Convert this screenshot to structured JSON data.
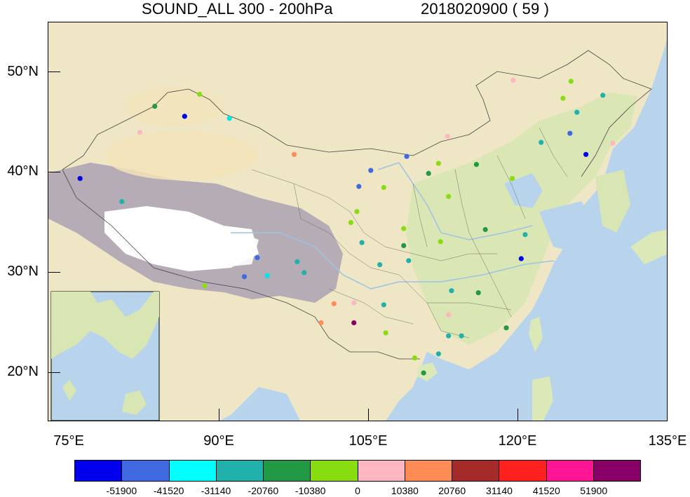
{
  "title": {
    "left": "SOUND_ALL 300 - 200hPa",
    "right": "2018020900  ( 59 )"
  },
  "map": {
    "lat_labels": [
      "50°N",
      "40°N",
      "30°N",
      "20°N"
    ],
    "lon_labels": [
      "75°E",
      "90°E",
      "105°E",
      "120°E",
      "135°E"
    ],
    "ocean_color": "#b8d4ec",
    "land_color": "#f0e6c8",
    "plateau_color": "#b4aab4",
    "snow_color": "#ffffff",
    "stations": [
      {
        "lon": 88,
        "lat": 47.8,
        "color": "#88dd11"
      },
      {
        "lon": 83.5,
        "lat": 46.6,
        "color": "#229944"
      },
      {
        "lon": 86.5,
        "lat": 45.6,
        "color": "#0000ee"
      },
      {
        "lon": 91,
        "lat": 45.4,
        "color": "#00e5e5"
      },
      {
        "lon": 82,
        "lat": 44,
        "color": "#ffb6c1"
      },
      {
        "lon": 76,
        "lat": 39.4,
        "color": "#0000ee"
      },
      {
        "lon": 80.2,
        "lat": 37.1,
        "color": "#20b2aa"
      },
      {
        "lon": 97.5,
        "lat": 41.8,
        "color": "#ff8c55"
      },
      {
        "lon": 104,
        "lat": 38.6,
        "color": "#4169e1"
      },
      {
        "lon": 105.2,
        "lat": 40.2,
        "color": "#4169e1"
      },
      {
        "lon": 106.5,
        "lat": 38.5,
        "color": "#88dd11"
      },
      {
        "lon": 108.8,
        "lat": 41.6,
        "color": "#4169e1"
      },
      {
        "lon": 111,
        "lat": 39.9,
        "color": "#229944"
      },
      {
        "lon": 112,
        "lat": 40.9,
        "color": "#88dd11"
      },
      {
        "lon": 113,
        "lat": 37.6,
        "color": "#88dd11"
      },
      {
        "lon": 115.8,
        "lat": 40.8,
        "color": "#229944"
      },
      {
        "lon": 119.4,
        "lat": 39.4,
        "color": "#88dd11"
      },
      {
        "lon": 112.9,
        "lat": 43.6,
        "color": "#ffb6c1"
      },
      {
        "lon": 119.5,
        "lat": 49.2,
        "color": "#ffb6c1"
      },
      {
        "lon": 125.3,
        "lat": 49.1,
        "color": "#88dd11"
      },
      {
        "lon": 124.5,
        "lat": 47.4,
        "color": "#88dd11"
      },
      {
        "lon": 128.5,
        "lat": 47.7,
        "color": "#20b2aa"
      },
      {
        "lon": 125.9,
        "lat": 46,
        "color": "#20b2aa"
      },
      {
        "lon": 125.2,
        "lat": 43.9,
        "color": "#4169e1"
      },
      {
        "lon": 122.3,
        "lat": 43,
        "color": "#20b2aa"
      },
      {
        "lon": 126.8,
        "lat": 41.8,
        "color": "#0000ee"
      },
      {
        "lon": 129.5,
        "lat": 42.9,
        "color": "#ffb6c1"
      },
      {
        "lon": 103.8,
        "lat": 36.1,
        "color": "#88dd11"
      },
      {
        "lon": 103.2,
        "lat": 35,
        "color": "#88dd11"
      },
      {
        "lon": 104.3,
        "lat": 33,
        "color": "#20b2aa"
      },
      {
        "lon": 108.5,
        "lat": 34.4,
        "color": "#88dd11"
      },
      {
        "lon": 108.5,
        "lat": 32.7,
        "color": "#229944"
      },
      {
        "lon": 112.2,
        "lat": 33.1,
        "color": "#88dd11"
      },
      {
        "lon": 116.7,
        "lat": 34.3,
        "color": "#229944"
      },
      {
        "lon": 120.7,
        "lat": 33.8,
        "color": "#20b2aa"
      },
      {
        "lon": 120.3,
        "lat": 31.4,
        "color": "#0000ee"
      },
      {
        "lon": 106.1,
        "lat": 30.8,
        "color": "#20b2aa"
      },
      {
        "lon": 109,
        "lat": 31.2,
        "color": "#20b2aa"
      },
      {
        "lon": 93.8,
        "lat": 31.5,
        "color": "#4169e1"
      },
      {
        "lon": 92.5,
        "lat": 29.6,
        "color": "#4169e1"
      },
      {
        "lon": 94.8,
        "lat": 29.7,
        "color": "#00e5e5"
      },
      {
        "lon": 97.8,
        "lat": 31.1,
        "color": "#20b2aa"
      },
      {
        "lon": 98.5,
        "lat": 30,
        "color": "#20b2aa"
      },
      {
        "lon": 88.5,
        "lat": 28.7,
        "color": "#88dd11"
      },
      {
        "lon": 101.5,
        "lat": 26.9,
        "color": "#ff8c55"
      },
      {
        "lon": 103.5,
        "lat": 27,
        "color": "#ffb6c1"
      },
      {
        "lon": 106.5,
        "lat": 26.8,
        "color": "#20b2aa"
      },
      {
        "lon": 100.2,
        "lat": 25,
        "color": "#ff8c55"
      },
      {
        "lon": 103.5,
        "lat": 25,
        "color": "#880066"
      },
      {
        "lon": 106.7,
        "lat": 24,
        "color": "#88dd11"
      },
      {
        "lon": 113.3,
        "lat": 28.2,
        "color": "#20b2aa"
      },
      {
        "lon": 116,
        "lat": 28,
        "color": "#229944"
      },
      {
        "lon": 113,
        "lat": 25.8,
        "color": "#ffb6c1"
      },
      {
        "lon": 113,
        "lat": 23.7,
        "color": "#20b2aa"
      },
      {
        "lon": 114.3,
        "lat": 23.7,
        "color": "#20b2aa"
      },
      {
        "lon": 118.8,
        "lat": 24.5,
        "color": "#229944"
      },
      {
        "lon": 112,
        "lat": 21.9,
        "color": "#20b2aa"
      },
      {
        "lon": 109.6,
        "lat": 21.5,
        "color": "#88dd11"
      },
      {
        "lon": 110.5,
        "lat": 20,
        "color": "#229944"
      }
    ]
  },
  "colorbar": {
    "colors": [
      "#0000ee",
      "#4169e1",
      "#00ffff",
      "#20b2aa",
      "#229944",
      "#88dd11",
      "#ffb6c1",
      "#ff8c55",
      "#a52a2a",
      "#ff2020",
      "#ff1493",
      "#880066"
    ],
    "labels": [
      "-51900",
      "-41520",
      "-31140",
      "-20760",
      "-10380",
      "0",
      "10380",
      "20760",
      "31140",
      "41520",
      "51900"
    ]
  }
}
